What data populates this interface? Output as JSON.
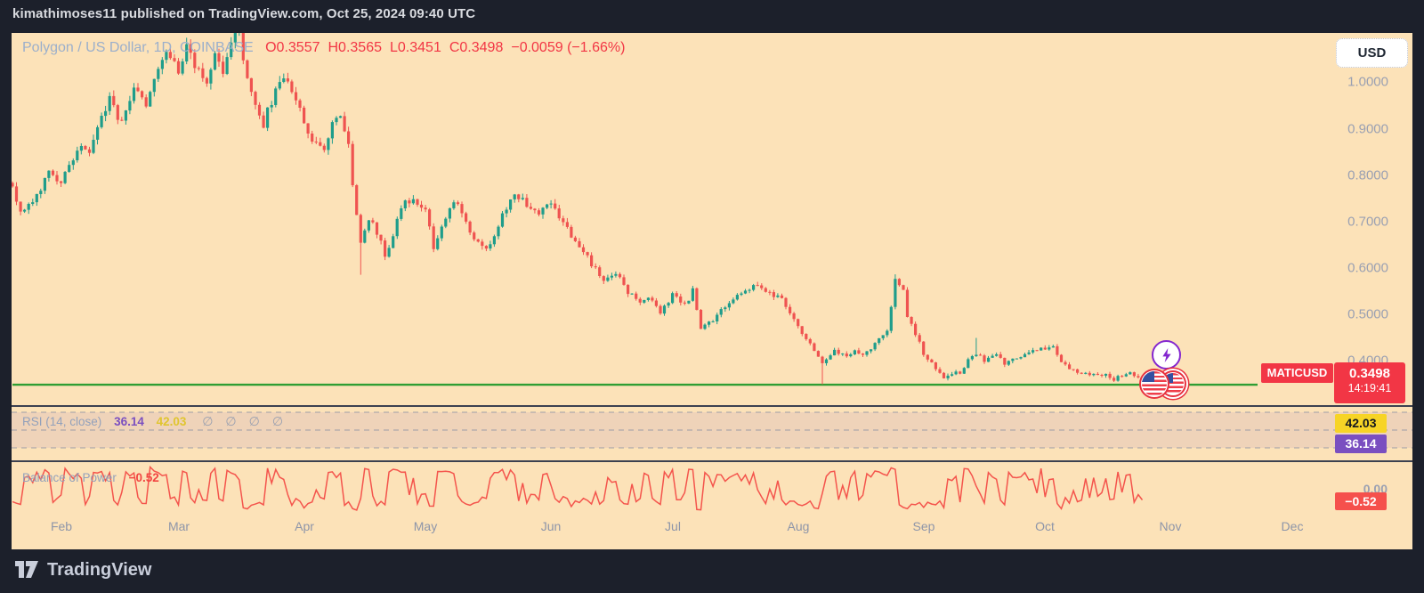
{
  "top_bar": {
    "text": "kimathimoses11 published on TradingView.com, Oct 25, 2024 09:40 UTC"
  },
  "footer": {
    "brand": "TradingView"
  },
  "legend": {
    "title": "Polygon / US Dollar, 1D, COINBASE",
    "ohlc": {
      "open": "O0.3557",
      "high": "H0.3565",
      "low": "L0.3451",
      "close": "C0.3498",
      "change": "−0.0059 (−1.66%)"
    }
  },
  "price_scale": {
    "currency_button": "USD",
    "symbol_label": "MATICUSD",
    "last_price": "0.3498",
    "countdown": "14:19:41",
    "ticks": [
      {
        "label": "1.0000",
        "price": 1.0
      },
      {
        "label": "0.9000",
        "price": 0.9
      },
      {
        "label": "0.8000",
        "price": 0.8
      },
      {
        "label": "0.7000",
        "price": 0.7
      },
      {
        "label": "0.6000",
        "price": 0.6
      },
      {
        "label": "0.5000",
        "price": 0.5
      },
      {
        "label": "0.4000",
        "price": 0.4
      }
    ]
  },
  "rsi_panel": {
    "title": "RSI",
    "params": "(14, close)",
    "value": "36.14",
    "ma_value": "42.03",
    "hidden_markers": [
      "∅",
      "∅",
      "∅",
      "∅"
    ],
    "levels": [
      70,
      50,
      30
    ]
  },
  "bop_panel": {
    "title": "Balance of Power",
    "value": "−0.52",
    "zero_label": "0.00"
  },
  "time_axis": {
    "months": [
      {
        "label": "Feb",
        "day": 12
      },
      {
        "label": "Mar",
        "day": 41
      },
      {
        "label": "Apr",
        "day": 72
      },
      {
        "label": "May",
        "day": 102
      },
      {
        "label": "Jun",
        "day": 133
      },
      {
        "label": "Jul",
        "day": 163
      },
      {
        "label": "Aug",
        "day": 194
      },
      {
        "label": "Sep",
        "day": 225
      },
      {
        "label": "Oct",
        "day": 255
      },
      {
        "label": "Nov",
        "day": 286
      },
      {
        "label": "Dec",
        "day": 316
      }
    ]
  },
  "colors": {
    "candle_up": "#1f9d8b",
    "candle_down": "#ef5350",
    "support_line": "#2f9e33",
    "rsi_line": "#7a4fc0",
    "rsi_ma_line": "#f0cf3a",
    "rsi_band_fill": "rgba(123,82,201,0.10)",
    "rsi_level_line": "#8b91a2",
    "bop_line": "#f4544c",
    "accent_red": "#f23645",
    "label_yellow": "#f7d426",
    "label_purple": "#7a4fc0"
  },
  "chart_data": {
    "type": "candlestick",
    "title": "Polygon / US Dollar, 1D, COINBASE",
    "symbol": "MATICUSD",
    "timeframe": "1D",
    "exchange": "COINBASE",
    "current_bar": {
      "open": 0.3557,
      "high": 0.3565,
      "low": 0.3451,
      "close": 0.3498,
      "change": -0.0059,
      "change_pct": -1.66
    },
    "ylim": [
      0.33,
      1.11
    ],
    "support_line_price": 0.348,
    "day0_date": "2024-01-20",
    "last_day": 279,
    "price_path_anchors": [
      [
        0,
        0.78
      ],
      [
        2,
        0.72
      ],
      [
        6,
        0.76
      ],
      [
        9,
        0.8
      ],
      [
        12,
        0.78
      ],
      [
        16,
        0.86
      ],
      [
        19,
        0.84
      ],
      [
        21,
        0.91
      ],
      [
        24,
        0.96
      ],
      [
        27,
        0.91
      ],
      [
        30,
        1.0
      ],
      [
        33,
        0.94
      ],
      [
        35,
        1.01
      ],
      [
        38,
        1.06
      ],
      [
        41,
        1.02
      ],
      [
        43,
        1.09
      ],
      [
        45,
        1.04
      ],
      [
        48,
        0.99
      ],
      [
        50,
        1.07
      ],
      [
        52,
        1.03
      ],
      [
        54,
        1.09
      ],
      [
        56,
        1.11
      ],
      [
        58,
        1.0
      ],
      [
        62,
        0.91
      ],
      [
        64,
        0.96
      ],
      [
        67,
        1.01
      ],
      [
        70,
        0.97
      ],
      [
        72,
        0.92
      ],
      [
        74,
        0.87
      ],
      [
        77,
        0.86
      ],
      [
        79,
        0.91
      ],
      [
        81,
        0.92
      ],
      [
        83,
        0.86
      ],
      [
        84,
        0.78
      ],
      [
        86,
        0.66
      ],
      [
        88,
        0.7
      ],
      [
        89,
        0.69
      ],
      [
        91,
        0.655
      ],
      [
        92,
        0.625
      ],
      [
        95,
        0.7
      ],
      [
        97,
        0.74
      ],
      [
        99,
        0.75
      ],
      [
        102,
        0.72
      ],
      [
        104,
        0.645
      ],
      [
        107,
        0.71
      ],
      [
        109,
        0.75
      ],
      [
        111,
        0.72
      ],
      [
        114,
        0.66
      ],
      [
        117,
        0.64
      ],
      [
        119,
        0.67
      ],
      [
        122,
        0.73
      ],
      [
        124,
        0.75
      ],
      [
        127,
        0.74
      ],
      [
        130,
        0.715
      ],
      [
        133,
        0.735
      ],
      [
        135,
        0.71
      ],
      [
        139,
        0.66
      ],
      [
        141,
        0.63
      ],
      [
        144,
        0.6
      ],
      [
        146,
        0.57
      ],
      [
        149,
        0.59
      ],
      [
        152,
        0.55
      ],
      [
        155,
        0.52
      ],
      [
        157,
        0.535
      ],
      [
        160,
        0.5
      ],
      [
        163,
        0.545
      ],
      [
        166,
        0.52
      ],
      [
        168,
        0.55
      ],
      [
        170,
        0.47
      ],
      [
        173,
        0.49
      ],
      [
        176,
        0.52
      ],
      [
        179,
        0.545
      ],
      [
        181,
        0.55
      ],
      [
        184,
        0.56
      ],
      [
        187,
        0.545
      ],
      [
        190,
        0.53
      ],
      [
        192,
        0.5
      ],
      [
        195,
        0.46
      ],
      [
        197,
        0.44
      ],
      [
        200,
        0.395
      ],
      [
        201,
        0.4
      ],
      [
        203,
        0.42
      ],
      [
        206,
        0.41
      ],
      [
        208,
        0.42
      ],
      [
        210,
        0.41
      ],
      [
        213,
        0.435
      ],
      [
        216,
        0.46
      ],
      [
        217,
        0.52
      ],
      [
        218,
        0.575
      ],
      [
        220,
        0.55
      ],
      [
        221,
        0.5
      ],
      [
        223,
        0.46
      ],
      [
        225,
        0.415
      ],
      [
        228,
        0.38
      ],
      [
        230,
        0.365
      ],
      [
        232,
        0.37
      ],
      [
        234,
        0.375
      ],
      [
        236,
        0.4
      ],
      [
        239,
        0.415
      ],
      [
        240,
        0.4
      ],
      [
        243,
        0.41
      ],
      [
        245,
        0.395
      ],
      [
        247,
        0.4
      ],
      [
        250,
        0.41
      ],
      [
        252,
        0.42
      ],
      [
        254,
        0.425
      ],
      [
        257,
        0.43
      ],
      [
        259,
        0.4
      ],
      [
        261,
        0.385
      ],
      [
        263,
        0.372
      ],
      [
        265,
        0.376
      ],
      [
        268,
        0.365
      ],
      [
        270,
        0.372
      ],
      [
        272,
        0.36
      ],
      [
        274,
        0.368
      ],
      [
        276,
        0.374
      ],
      [
        278,
        0.362
      ],
      [
        279,
        0.3498
      ]
    ],
    "wick_events": [
      {
        "day": 86,
        "low": 0.585
      },
      {
        "day": 200,
        "low": 0.349
      },
      {
        "day": 218,
        "high": 0.586
      },
      {
        "day": 238,
        "high": 0.449
      }
    ],
    "indicators": [
      {
        "name": "RSI",
        "params": "(14, close)",
        "current": 36.14,
        "ma_current": 42.03,
        "levels": [
          70,
          50,
          30
        ]
      },
      {
        "name": "Balance of Power",
        "current": -0.52,
        "zero_level": 0.0
      }
    ]
  }
}
